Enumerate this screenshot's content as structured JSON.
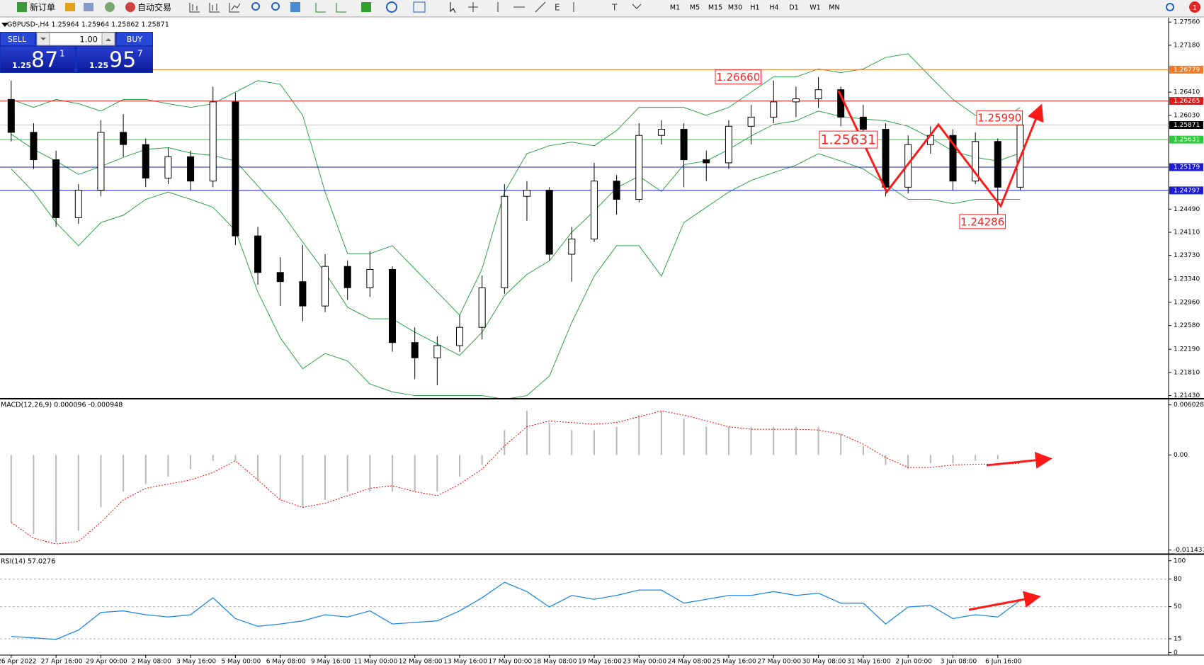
{
  "toolbar": {
    "new_order": "新订单",
    "auto_trading": "自动交易",
    "timeframes": [
      "M1",
      "M5",
      "M15",
      "M30",
      "H1",
      "H4",
      "D1",
      "W1",
      "MN"
    ],
    "alerts": "1"
  },
  "trade_panel": {
    "sell": "SELL",
    "lot": "1.00",
    "buy": "BUY",
    "sell_price": [
      "1.25",
      "87",
      "1"
    ],
    "buy_price": [
      "1.25",
      "95",
      "7"
    ]
  },
  "chart_data": [
    {
      "type": "candlestick",
      "title": "GBPUSD-,H4 1.25964 1.25964 1.25862 1.25871",
      "categories": [
        "26 Apr 2022",
        null,
        "27 Apr 16:00",
        null,
        "29 Apr 00:00",
        null,
        "2 May 08:00",
        null,
        "3 May 16:00",
        null,
        "5 May 00:00",
        null,
        "6 May 08:00",
        null,
        "9 May 16:00",
        null,
        "11 May 00:00",
        null,
        "12 May 08:00",
        null,
        "13 May 16:00",
        null,
        "17 May 00:00",
        null,
        "18 May 08:00",
        null,
        "19 May 16:00",
        null,
        "23 May 00:00",
        null,
        "24 May 08:00",
        null,
        "25 May 16:00",
        null,
        "27 May 00:00",
        null,
        "30 May 08:00",
        null,
        "31 May 16:00",
        null,
        "2 Jun 00:00",
        null,
        "3 Jun 08:00",
        null,
        "6 Jun 16:00",
        null
      ],
      "open": [
        1.2629,
        1.2575,
        1.253,
        1.2435,
        1.248,
        1.2575,
        1.2555,
        1.25,
        1.2535,
        1.2495,
        1.2625,
        1.2405,
        1.2345,
        1.233,
        1.229,
        1.2355,
        1.232,
        1.235,
        1.223,
        1.2205,
        1.2225,
        1.2255,
        1.232,
        1.247,
        1.248,
        1.2375,
        1.24,
        1.2495,
        1.2465,
        1.257,
        1.258,
        1.253,
        1.2525,
        1.2585,
        1.26,
        1.2625,
        1.263,
        1.2645,
        1.26,
        1.258,
        1.2485,
        1.2555,
        1.257,
        1.2495,
        1.256,
        1.2485
      ],
      "high": [
        1.266,
        1.259,
        1.2545,
        1.249,
        1.2595,
        1.2605,
        1.2565,
        1.255,
        1.2545,
        1.265,
        1.264,
        1.242,
        1.237,
        1.239,
        1.2375,
        1.2365,
        1.238,
        1.2355,
        1.2255,
        1.224,
        1.2275,
        1.234,
        1.249,
        1.2495,
        1.2485,
        1.242,
        1.2525,
        1.2505,
        1.259,
        1.2595,
        1.259,
        1.2545,
        1.2595,
        1.262,
        1.266,
        1.265,
        1.2666,
        1.265,
        1.262,
        1.259,
        1.257,
        1.2585,
        1.258,
        1.2575,
        1.2565,
        1.2599
      ],
      "low": [
        1.256,
        1.2515,
        1.242,
        1.2425,
        1.247,
        1.2535,
        1.2485,
        1.249,
        1.248,
        1.2485,
        1.239,
        1.2325,
        1.229,
        1.2265,
        1.228,
        1.23,
        1.2305,
        1.2215,
        1.217,
        1.216,
        1.2215,
        1.2235,
        1.231,
        1.243,
        1.2365,
        1.233,
        1.2395,
        1.244,
        1.246,
        1.2555,
        1.2485,
        1.2495,
        1.2515,
        1.2555,
        1.259,
        1.26,
        1.2615,
        1.2585,
        1.256,
        1.247,
        1.2475,
        1.254,
        1.248,
        1.249,
        1.2429,
        1.248
      ],
      "close": [
        1.2575,
        1.253,
        1.2435,
        1.248,
        1.2575,
        1.2555,
        1.25,
        1.2535,
        1.2495,
        1.2625,
        1.2405,
        1.2345,
        1.233,
        1.229,
        1.2355,
        1.232,
        1.235,
        1.223,
        1.2205,
        1.2225,
        1.2255,
        1.232,
        1.247,
        1.248,
        1.2375,
        1.24,
        1.2495,
        1.2465,
        1.257,
        1.258,
        1.253,
        1.2525,
        1.2585,
        1.26,
        1.2625,
        1.263,
        1.2645,
        1.26,
        1.258,
        1.2485,
        1.2555,
        1.257,
        1.2495,
        1.256,
        1.2485,
        1.2587
      ],
      "up_color": "#ffffff",
      "down_color": "#000000",
      "bands": {
        "color": "#2ca24a",
        "upper": [
          1.2629,
          1.2616,
          1.2629,
          1.2622,
          1.261,
          1.2629,
          1.2629,
          1.2622,
          1.2616,
          1.2622,
          1.2641,
          1.266,
          1.2654,
          1.2603,
          1.2477,
          1.2376,
          1.2376,
          1.2389,
          1.2351,
          1.2313,
          1.2275,
          1.2351,
          1.2477,
          1.254,
          1.2553,
          1.2559,
          1.2553,
          1.2578,
          1.2616,
          1.2616,
          1.2616,
          1.2603,
          1.2616,
          1.2641,
          1.2666,
          1.2666,
          1.2679,
          1.2673,
          1.2679,
          1.2698,
          1.2704,
          1.2666,
          1.2629,
          1.2603,
          1.2591,
          1.2616
        ],
        "middle": [
          1.2572,
          1.2547,
          1.2528,
          1.2506,
          1.2519,
          1.2534,
          1.2547,
          1.255,
          1.2541,
          1.2537,
          1.2528,
          1.2487,
          1.2446,
          1.2395,
          1.2345,
          1.2288,
          1.2269,
          1.2269,
          1.2247,
          1.2228,
          1.2209,
          1.2247,
          1.2307,
          1.2342,
          1.2364,
          1.2411,
          1.2446,
          1.2484,
          1.2503,
          1.2478,
          1.2522,
          1.2528,
          1.2547,
          1.2569,
          1.2588,
          1.2594,
          1.261,
          1.2601,
          1.2597,
          1.2594,
          1.2585,
          1.2566,
          1.2544,
          1.2534,
          1.2528,
          1.2541
        ],
        "lower": [
          1.2515,
          1.2477,
          1.2427,
          1.2389,
          1.2427,
          1.2439,
          1.2465,
          1.2477,
          1.2465,
          1.2452,
          1.2414,
          1.2313,
          1.2238,
          1.2187,
          1.2212,
          1.22,
          1.2162,
          1.2149,
          1.2143,
          1.2143,
          1.2143,
          1.2143,
          1.2137,
          1.2143,
          1.2175,
          1.2263,
          1.2339,
          1.2389,
          1.2389,
          1.2339,
          1.2427,
          1.2452,
          1.2477,
          1.2496,
          1.2509,
          1.2521,
          1.254,
          1.2528,
          1.2515,
          1.249,
          1.2465,
          1.2465,
          1.2458,
          1.2465,
          1.2465,
          1.2465
        ]
      },
      "ylim": [
        1.2139,
        1.2762
      ],
      "yticks": [
        {
          "value": 1.2756,
          "label": "1.27560"
        },
        {
          "value": 1.2718,
          "label": "1.27180"
        },
        {
          "value": 1.2641,
          "label": "1.26410"
        },
        {
          "value": 1.2603,
          "label": "1.26030"
        },
        {
          "value": 1.2449,
          "label": "1.24490"
        },
        {
          "value": 1.2411,
          "label": "1.24110"
        },
        {
          "value": 1.2373,
          "label": "1.23730"
        },
        {
          "value": 1.2334,
          "label": "1.23340"
        },
        {
          "value": 1.2296,
          "label": "1.22960"
        },
        {
          "value": 1.2258,
          "label": "1.22580"
        },
        {
          "value": 1.2219,
          "label": "1.22190"
        },
        {
          "value": 1.2181,
          "label": "1.21810"
        },
        {
          "value": 1.2143,
          "label": "1.21430"
        }
      ],
      "hlines": [
        {
          "value": 1.26779,
          "color": "#f07c28"
        },
        {
          "value": 1.26265,
          "color": "#e01b1b"
        },
        {
          "value": 1.25631,
          "color": "#30c83c"
        },
        {
          "value": 1.25179,
          "color": "#1c1cd6"
        },
        {
          "value": 1.24797,
          "color": "#1c1cd6"
        }
      ],
      "bid": {
        "value": 1.25871,
        "color": "#c4c4c4"
      },
      "annotations": [
        {
          "value": 1.2666,
          "label": "1.26660"
        },
        {
          "value": 1.25631,
          "label": "1.25631"
        },
        {
          "value": 1.2599,
          "label": "1.25990"
        },
        {
          "value": 1.24286,
          "label": "1.24286"
        }
      ]
    },
    {
      "type": "macd",
      "title": "MACD(12,26,9) 0.000096 -0.000948",
      "histogram": [
        -0.0081,
        -0.0095,
        -0.0105,
        -0.0091,
        -0.0063,
        -0.0044,
        -0.0035,
        -0.0026,
        -0.0017,
        -0.0007,
        -0.0007,
        -0.003,
        -0.0054,
        -0.0063,
        -0.0054,
        -0.0044,
        -0.0044,
        -0.0044,
        -0.0044,
        -0.0044,
        -0.0026,
        -0.0012,
        0.003,
        0.0053,
        0.0039,
        0.003,
        0.003,
        0.0034,
        0.0048,
        0.0053,
        0.0044,
        0.0034,
        0.0034,
        0.0034,
        0.0034,
        0.0034,
        0.0034,
        0.0025,
        0.0011,
        -0.0012,
        -0.0017,
        -0.001,
        -0.001,
        -0.0007,
        -0.0005,
        0
      ],
      "signal": [
        -0.0081,
        -0.01,
        -0.0107,
        -0.0104,
        -0.0081,
        -0.0054,
        -0.004,
        -0.0035,
        -0.003,
        -0.0021,
        -0.0007,
        -0.003,
        -0.0054,
        -0.0063,
        -0.0058,
        -0.0049,
        -0.004,
        -0.0037,
        -0.0044,
        -0.0049,
        -0.0035,
        -0.0017,
        0.0011,
        0.0034,
        0.0041,
        0.0039,
        0.0037,
        0.0039,
        0.0046,
        0.0053,
        0.0048,
        0.0041,
        0.0034,
        0.0031,
        0.0031,
        0.0031,
        0.003,
        0.0025,
        0.0013,
        -0.0003,
        -0.0015,
        -0.0015,
        -0.0012,
        -0.0011,
        -0.0011,
        -0.001
      ],
      "histogram_color": "#b8b8b8",
      "signal_color": "#ff0000",
      "ylim": [
        -0.0118,
        0.0066
      ],
      "yticks": [
        0.006028,
        {
          "value": 0,
          "label": "0.00"
        },
        -0.011431
      ]
    },
    {
      "type": "line",
      "title": "RSI(14) 57.0276",
      "values": [
        17.6,
        16.0,
        14.3,
        24.4,
        43.7,
        45.4,
        41.2,
        38.7,
        41.2,
        59.7,
        37.0,
        28.6,
        31.1,
        34.5,
        41.2,
        38.7,
        45.4,
        31.1,
        32.8,
        34.5,
        45.4,
        59.7,
        76.5,
        66.4,
        49.6,
        62.2,
        58.0,
        62.2,
        68.1,
        68.1,
        53.8,
        58.0,
        62.2,
        62.2,
        66.4,
        62.2,
        64.7,
        53.8,
        53.8,
        31.1,
        49.6,
        51.3,
        37.0,
        41.2,
        38.7,
        57.0
      ],
      "color": "#1e88e5",
      "ylim": [
        -2,
        106
      ],
      "yticks": [
        100,
        80,
        50,
        15,
        0
      ],
      "levels": [
        80,
        50,
        15
      ]
    }
  ]
}
